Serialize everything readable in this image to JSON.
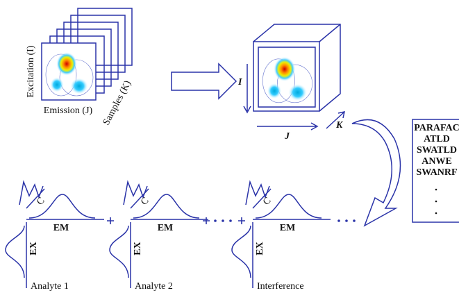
{
  "input": {
    "excitation_label": "Excitation (I)",
    "emission_label": "Emission (J)",
    "samples_label": "Samples (K)"
  },
  "cube": {
    "i_label": "I",
    "j_label": "J",
    "k_label": "K"
  },
  "algorithms": [
    "PARAFAC",
    "ATLD",
    "SWATLD",
    "ANWE",
    "SWANRF"
  ],
  "components": [
    {
      "label": "Analyte 1",
      "c": "C",
      "em": "EM",
      "ex": "EX"
    },
    {
      "label": "Analyte 2",
      "c": "C",
      "em": "EM",
      "ex": "EX"
    },
    {
      "label": "Interference",
      "c": "C",
      "em": "EM",
      "ex": "EX"
    }
  ]
}
